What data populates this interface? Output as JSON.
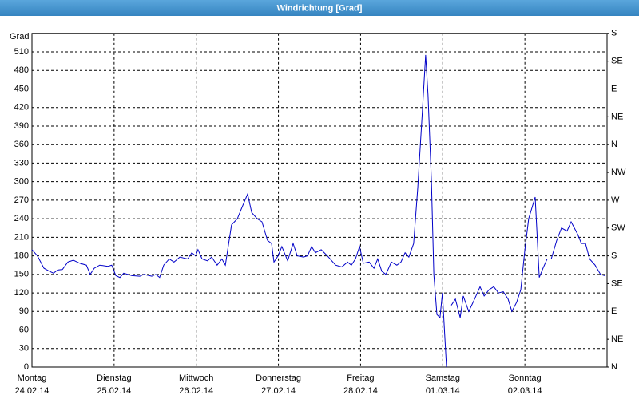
{
  "chart_data": {
    "type": "line",
    "title": "Windrichtung [Grad]",
    "ylabel": "Grad",
    "color": "#0000c8",
    "grid": true,
    "xlim": [
      0,
      168
    ],
    "xticks": [
      {
        "value": 0,
        "label": "Montag",
        "date": "24.02.14"
      },
      {
        "value": 24,
        "label": "Dienstag",
        "date": "25.02.14"
      },
      {
        "value": 48,
        "label": "Mittwoch",
        "date": "26.02.14"
      },
      {
        "value": 72,
        "label": "Donnerstag",
        "date": "27.02.14"
      },
      {
        "value": 96,
        "label": "Freitag",
        "date": "28.02.14"
      },
      {
        "value": 120,
        "label": "Samstag",
        "date": "01.03.14"
      },
      {
        "value": 144,
        "label": "Sonntag",
        "date": "02.03.14"
      }
    ],
    "ylim": [
      0,
      540
    ],
    "yticks": [
      0,
      30,
      60,
      90,
      120,
      150,
      180,
      210,
      240,
      270,
      300,
      330,
      360,
      390,
      420,
      450,
      480,
      510
    ],
    "y2lim": [
      0,
      540
    ],
    "y2ticks": [
      {
        "value": 0,
        "label": "N"
      },
      {
        "value": 45,
        "label": "NE"
      },
      {
        "value": 90,
        "label": "E"
      },
      {
        "value": 135,
        "label": "SE"
      },
      {
        "value": 180,
        "label": "S"
      },
      {
        "value": 225,
        "label": "SW"
      },
      {
        "value": 270,
        "label": "W"
      },
      {
        "value": 315,
        "label": "NW"
      },
      {
        "value": 360,
        "label": "N"
      },
      {
        "value": 405,
        "label": "NE"
      },
      {
        "value": 450,
        "label": "E"
      },
      {
        "value": 495,
        "label": "SE"
      },
      {
        "value": 540,
        "label": "S"
      }
    ],
    "x": [
      0,
      1.6,
      3.5,
      5.1,
      6.3,
      7.5,
      8.9,
      10.5,
      12.1,
      14,
      15.9,
      17,
      18.2,
      19.8,
      22.2,
      23.3,
      24.5,
      25.7,
      26.8,
      29.2,
      31.5,
      32.7,
      35,
      36.2,
      37.3,
      38.5,
      40.1,
      41.5,
      43.2,
      45.5,
      46.7,
      47.8,
      48.5,
      49.7,
      51.3,
      52.5,
      54.1,
      55.5,
      56.5,
      58.3,
      60,
      61.1,
      63,
      64.2,
      65.8,
      67.2,
      68.8,
      70,
      70.7,
      71.9,
      73,
      74.7,
      76.3,
      77.5,
      79.3,
      80.5,
      81.7,
      82.8,
      84.5,
      86.3,
      88.7,
      90.5,
      92.2,
      93.3,
      94.5,
      95.7,
      96.8,
      98.5,
      99.9,
      101,
      102.2,
      103.4,
      105,
      106.6,
      107.8,
      109,
      110.1,
      111.5,
      112.7,
      113.9,
      115,
      115.7,
      116.7,
      117.4,
      118.3,
      119.2,
      119.9,
      121.1,
      121.8,
      122.5,
      123.7,
      125.1,
      126,
      127.6,
      129.3,
      130.9,
      132.1,
      133.5,
      134.9,
      136.3,
      137.7,
      139.1,
      140.2,
      141.6,
      142.8,
      144,
      145.1,
      147,
      148.2,
      149.3,
      150.5,
      151.7,
      153.3,
      154.7,
      156.3,
      157.5,
      159.4,
      160.5,
      161.7,
      162.9,
      164.5,
      166.1,
      167.3
    ],
    "values": [
      190,
      180,
      160,
      155,
      152,
      157,
      158,
      170,
      173,
      168,
      165,
      150,
      160,
      165,
      163,
      165,
      148,
      145,
      152,
      148,
      147,
      150,
      147,
      150,
      145,
      165,
      175,
      170,
      178,
      175,
      185,
      180,
      190,
      175,
      172,
      178,
      165,
      175,
      165,
      230,
      240,
      255,
      280,
      250,
      240,
      235,
      205,
      200,
      170,
      180,
      195,
      172,
      200,
      180,
      178,
      180,
      195,
      185,
      190,
      180,
      165,
      162,
      170,
      165,
      175,
      195,
      168,
      170,
      160,
      175,
      155,
      150,
      170,
      165,
      170,
      185,
      178,
      200,
      290,
      400,
      505,
      440,
      300,
      150,
      85,
      80,
      120,
      0,
      null,
      100,
      110,
      80,
      115,
      90,
      110,
      130,
      115,
      125,
      130,
      120,
      122,
      110,
      90,
      105,
      125,
      190,
      240,
      275,
      145,
      160,
      175,
      175,
      205,
      225,
      220,
      235,
      215,
      200,
      200,
      175,
      165,
      150,
      148
    ]
  }
}
